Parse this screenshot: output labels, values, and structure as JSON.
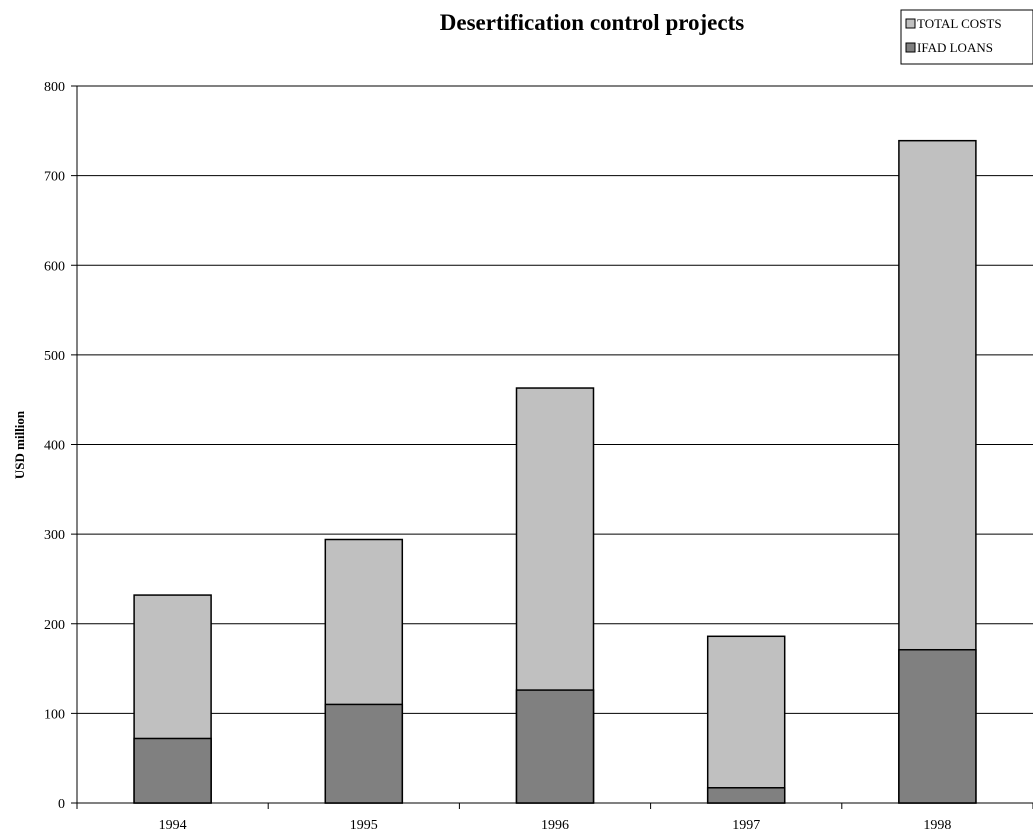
{
  "chart_data": {
    "type": "bar",
    "stacked": "overlay",
    "title": "Desertification control projects",
    "xlabel": "",
    "ylabel": "USD million",
    "categories": [
      "1994",
      "1995",
      "1996",
      "1997",
      "1998"
    ],
    "ylim": [
      0,
      800
    ],
    "yticks": [
      0,
      100,
      200,
      300,
      400,
      500,
      600,
      700,
      800
    ],
    "grid": true,
    "legend_position": "top-right",
    "series": [
      {
        "name": "TOTAL COSTS",
        "color": "#c0c0c0",
        "values": [
          232,
          294,
          463,
          186,
          739
        ]
      },
      {
        "name": "IFAD LOANS",
        "color": "#808080",
        "values": [
          72,
          110,
          126,
          17,
          171
        ]
      }
    ]
  }
}
